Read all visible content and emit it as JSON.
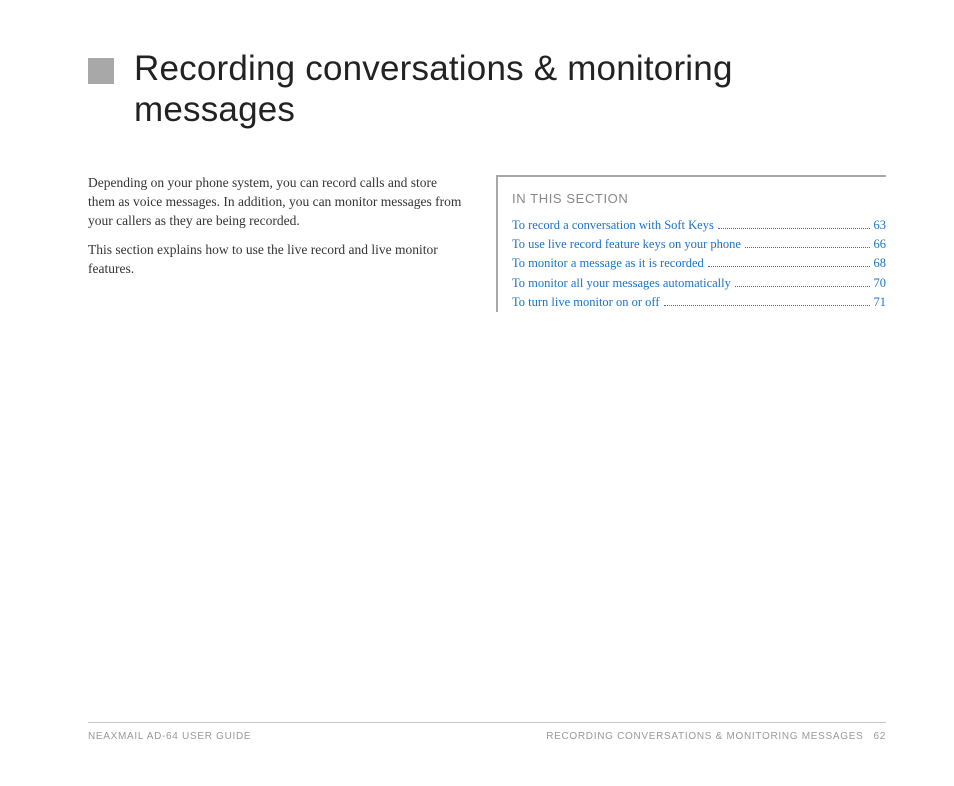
{
  "colors": {
    "bullet": "#a8a8a8",
    "title": "#222222",
    "body": "#333333",
    "section_label": "#888888",
    "link": "#1a73c9",
    "footer_text": "#999999",
    "rule": "#c8c8c8",
    "box_border": "#a8a8a8",
    "background": "#ffffff"
  },
  "typography": {
    "title_family": "Avenir Next, Segoe UI, Helvetica Neue, Arial, sans-serif",
    "title_size_pt": 26,
    "title_weight": 300,
    "body_family": "Georgia, Times New Roman, serif",
    "body_size_pt": 10,
    "section_label_size_pt": 10,
    "toc_size_pt": 9.5,
    "footer_size_pt": 7.5
  },
  "heading": {
    "title": "Recording conversations & monitoring messages"
  },
  "body": {
    "p1": "Depending on your phone system, you can record calls and store them as voice messages. In addition, you can monitor messages from your callers as they are being recorded.",
    "p2": "This section explains how to use the live record and live monitor features."
  },
  "section": {
    "label": "IN THIS SECTION",
    "items": [
      {
        "text": "To record a conversation with Soft Keys",
        "page": "63"
      },
      {
        "text": "To use live record feature keys on your phone",
        "page": "66"
      },
      {
        "text": "To monitor a message as it is recorded",
        "page": "68"
      },
      {
        "text": "To monitor all your messages automatically",
        "page": "70"
      },
      {
        "text": "To turn live monitor on or off",
        "page": "71"
      }
    ]
  },
  "footer": {
    "left": "NEAXMAIL AD-64 USER GUIDE",
    "right_title": "RECORDING CONVERSATIONS & MONITORING MESSAGES",
    "right_page": "62"
  }
}
